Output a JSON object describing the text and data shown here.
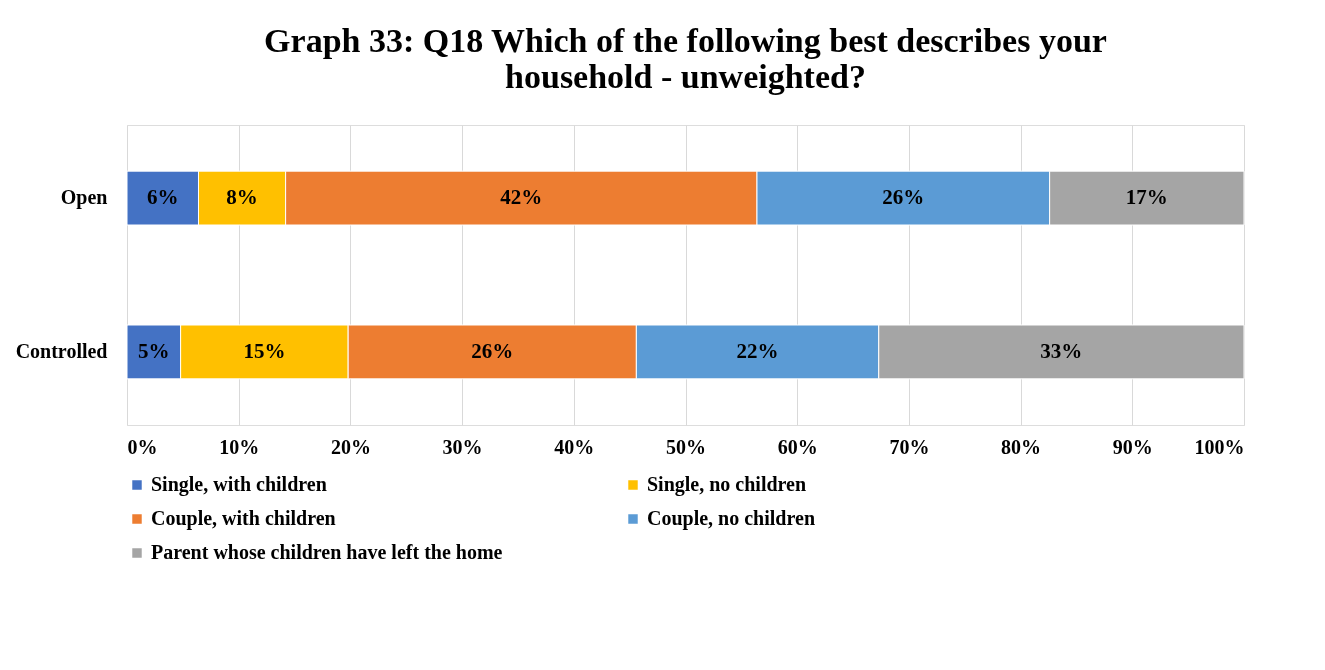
{
  "chart_data": {
    "type": "bar",
    "orientation": "horizontal",
    "stacked": true,
    "title": "Graph 33: Q18 Which of the following best describes your household - unweighted?",
    "categories": [
      "Open",
      "Controlled"
    ],
    "series": [
      {
        "name": "Single, with children",
        "color": "#4472c4",
        "values": [
          6.4,
          4.8
        ],
        "value_labels": [
          "6%",
          "5%"
        ]
      },
      {
        "name": "Single, no children",
        "color": "#ffc000",
        "values": [
          7.8,
          15.0
        ],
        "value_labels": [
          "8%",
          "15%"
        ]
      },
      {
        "name": "Couple, with children",
        "color": "#ed7d31",
        "values": [
          42.2,
          25.8
        ],
        "value_labels": [
          "42%",
          "26%"
        ]
      },
      {
        "name": "Couple, no children",
        "color": "#5b9bd5",
        "values": [
          26.2,
          21.7
        ],
        "value_labels": [
          "26%",
          "22%"
        ]
      },
      {
        "name": "Parent whose children have left the home",
        "color": "#a5a5a5",
        "values": [
          17.4,
          32.7
        ],
        "value_labels": [
          "17%",
          "33%"
        ]
      }
    ],
    "xlim": [
      0,
      100
    ],
    "xticks": [
      {
        "value": 0,
        "label": "0%"
      },
      {
        "value": 10,
        "label": "10%"
      },
      {
        "value": 20,
        "label": "20%"
      },
      {
        "value": 30,
        "label": "30%"
      },
      {
        "value": 40,
        "label": "40%"
      },
      {
        "value": 50,
        "label": "50%"
      },
      {
        "value": 60,
        "label": "60%"
      },
      {
        "value": 70,
        "label": "70%"
      },
      {
        "value": 80,
        "label": "80%"
      },
      {
        "value": 90,
        "label": "90%"
      },
      {
        "value": 100,
        "label": "100%"
      }
    ],
    "grid": "x",
    "legend": "bottom"
  }
}
